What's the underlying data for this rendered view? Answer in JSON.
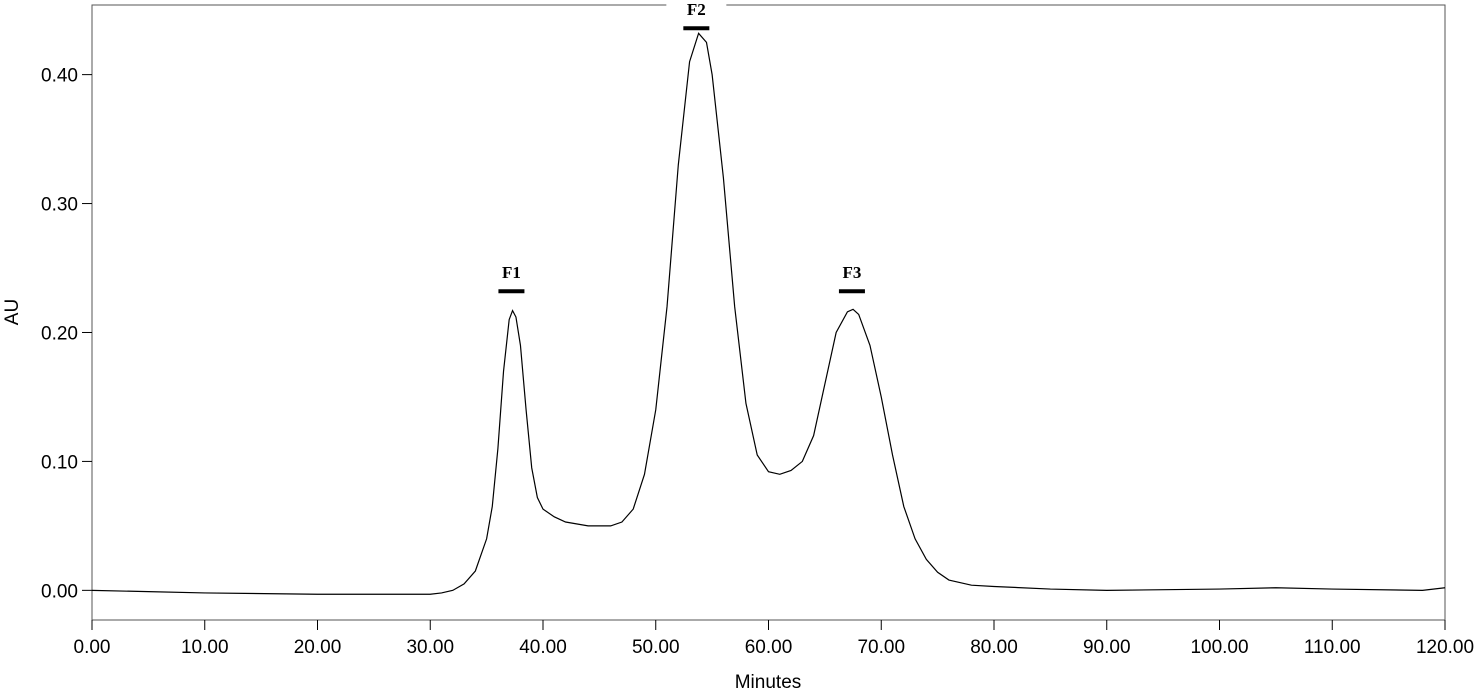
{
  "chart_data": {
    "type": "line",
    "x_label": "Minutes",
    "y_label": "AU",
    "x": [
      0,
      5,
      10,
      20,
      30,
      31,
      32,
      33,
      34,
      35,
      35.5,
      36,
      36.5,
      37,
      37.3,
      37.6,
      38,
      38.5,
      39,
      39.5,
      40,
      41,
      42,
      44,
      46,
      47,
      48,
      49,
      50,
      51,
      52,
      53,
      53.8,
      54.5,
      55,
      56,
      57,
      58,
      59,
      60,
      61,
      62,
      63,
      64,
      65,
      66,
      67,
      67.5,
      68,
      69,
      70,
      71,
      72,
      73,
      74,
      75,
      76,
      78,
      80,
      85,
      90,
      100,
      105,
      110,
      118,
      120
    ],
    "series": [
      {
        "color": "#000000",
        "values": [
          0.0,
          -0.001,
          -0.002,
          -0.003,
          -0.003,
          -0.002,
          0.0,
          0.005,
          0.015,
          0.04,
          0.065,
          0.11,
          0.17,
          0.21,
          0.217,
          0.212,
          0.19,
          0.14,
          0.095,
          0.072,
          0.063,
          0.057,
          0.053,
          0.05,
          0.05,
          0.053,
          0.063,
          0.09,
          0.14,
          0.22,
          0.33,
          0.41,
          0.432,
          0.425,
          0.4,
          0.32,
          0.22,
          0.145,
          0.105,
          0.092,
          0.09,
          0.093,
          0.1,
          0.12,
          0.16,
          0.2,
          0.216,
          0.218,
          0.214,
          0.19,
          0.15,
          0.105,
          0.065,
          0.04,
          0.024,
          0.014,
          0.008,
          0.004,
          0.003,
          0.001,
          0.0,
          0.001,
          0.002,
          0.001,
          0.0,
          0.002
        ]
      }
    ],
    "xlim": [
      0,
      120
    ],
    "ylim": [
      -0.023,
      0.454
    ],
    "xticks": [
      {
        "value": 0,
        "label": "0.00"
      },
      {
        "value": 10,
        "label": "10.00"
      },
      {
        "value": 20,
        "label": "20.00"
      },
      {
        "value": 30,
        "label": "30.00"
      },
      {
        "value": 40,
        "label": "40.00"
      },
      {
        "value": 50,
        "label": "50.00"
      },
      {
        "value": 60,
        "label": "60.00"
      },
      {
        "value": 70,
        "label": "70.00"
      },
      {
        "value": 80,
        "label": "80.00"
      },
      {
        "value": 90,
        "label": "90.00"
      },
      {
        "value": 100,
        "label": "100.00"
      },
      {
        "value": 110,
        "label": "110.00"
      },
      {
        "value": 120,
        "label": "120.00"
      }
    ],
    "yticks": [
      {
        "value": 0,
        "label": "0.00"
      },
      {
        "value": 0.1,
        "label": "0.10"
      },
      {
        "value": 0.2,
        "label": "0.20"
      },
      {
        "value": 0.3,
        "label": "0.30"
      },
      {
        "value": 0.4,
        "label": "0.40"
      }
    ],
    "annotations": [
      {
        "text": "F1",
        "x": 37.2,
        "y": 0.232
      },
      {
        "text": "F2",
        "x": 53.6,
        "y": 0.436
      },
      {
        "text": "F3",
        "x": 67.4,
        "y": 0.232
      }
    ]
  }
}
